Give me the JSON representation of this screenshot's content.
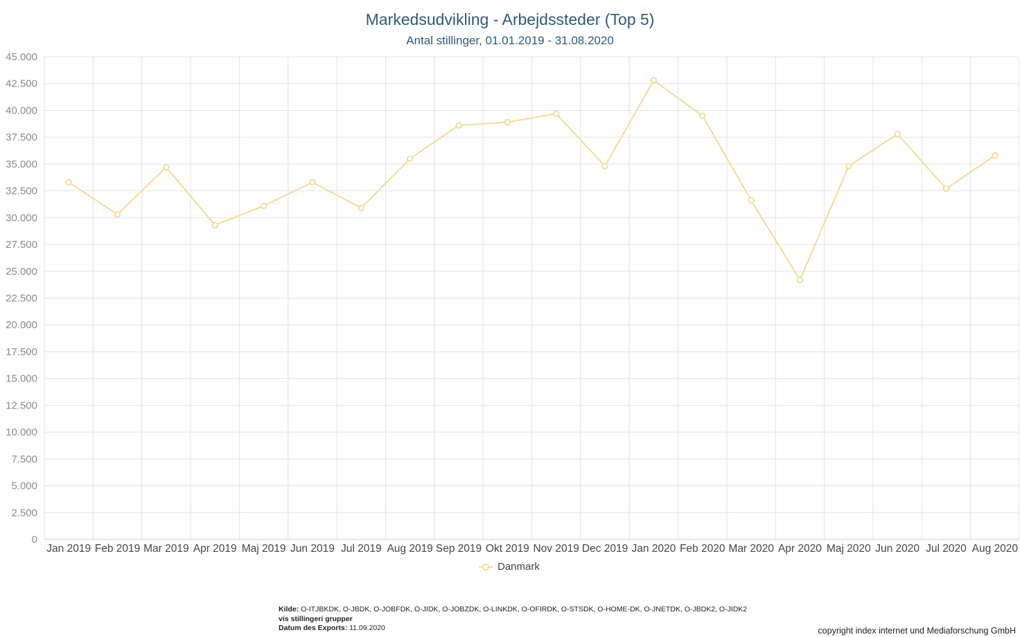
{
  "chart_data": {
    "type": "line",
    "title": "Markedsudvikling - Arbejdssteder (Top 5)",
    "subtitle": "Antal stillinger, 01.01.2019 - 31.08.2020",
    "categories": [
      "Jan 2019",
      "Feb 2019",
      "Mar 2019",
      "Apr 2019",
      "Maj 2019",
      "Jun 2019",
      "Jul 2019",
      "Aug 2019",
      "Sep 2019",
      "Okt 2019",
      "Nov 2019",
      "Dec 2019",
      "Jan 2020",
      "Feb 2020",
      "Mar 2020",
      "Apr 2020",
      "Maj 2020",
      "Jun 2020",
      "Jul 2020",
      "Aug 2020"
    ],
    "series": [
      {
        "name": "Danmark",
        "color": "#f2dc96",
        "values": [
          33300,
          30300,
          34700,
          29300,
          31100,
          33300,
          30900,
          35500,
          38600,
          38900,
          39700,
          34800,
          42800,
          39500,
          31600,
          24200,
          34800,
          37800,
          32700,
          35800
        ]
      }
    ],
    "ylim": [
      0,
      45000
    ],
    "yticks": [
      0,
      2500,
      5000,
      7500,
      10000,
      12500,
      15000,
      17500,
      20000,
      22500,
      25000,
      27500,
      30000,
      32500,
      35000,
      37500,
      40000,
      42500,
      45000
    ],
    "ytick_labels": [
      "0",
      "2.500",
      "5.000",
      "7.500",
      "10.000",
      "12.500",
      "15.000",
      "17.500",
      "20.000",
      "22.500",
      "25.000",
      "27.500",
      "30.000",
      "32.500",
      "35.000",
      "37.500",
      "40.000",
      "42.500",
      "45.000"
    ],
    "xlabel": "",
    "ylabel": "",
    "grid": true,
    "legend_position": "bottom-center"
  },
  "footer": {
    "source_label": "Kilde:",
    "source_value": "O-ITJBKDK, O-JBDK, O-JOBFDK, O-JIDK, O-JOBZDK, O-LINKDK, O-OFIRDK, O-STSDK, O-HOME-DK, O-JNETDK, O-JBDK2, O-JIDK2",
    "group_line": "vis stillingeri grupper",
    "export_label": "Datum des Exports:",
    "export_value": "11.09.2020",
    "copyright": "copyright index internet und Mediaforschung GmbH"
  }
}
